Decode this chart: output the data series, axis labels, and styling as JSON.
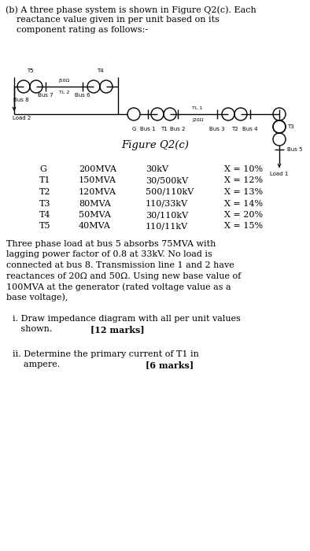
{
  "bg_color": "#ffffff",
  "text_color": "#000000",
  "title_line1": "(b) A three phase system is shown in Figure Q2(c). Each",
  "title_line2": "    reactance value given in per unit based on its",
  "title_line3": "    component rating as follows:-",
  "figure_caption": "Figure Q2(c)",
  "table_components": [
    "G",
    "T1",
    "T2",
    "T3",
    "T4",
    "T5"
  ],
  "table_mva": [
    "200MVA",
    "150MVA",
    "120MVA",
    "80MVA",
    "50MVA",
    "40MVA"
  ],
  "table_voltage": [
    "30kV",
    "30/500kV",
    "500/110kV",
    "110/33kV",
    "30/110kV",
    "110/11kV"
  ],
  "table_reactance": [
    "X = 10%",
    "X = 12%",
    "X = 13%",
    "X = 14%",
    "X = 20%",
    "X = 15%"
  ],
  "para_lines": [
    "Three phase load at bus 5 absorbs 75MVA with",
    "lagging power factor of 0.8 at 33kV. No load is",
    "connected at bus 8. Transmission line 1 and 2 have",
    "reactances of 20Ω and 50Ω. Using new base value of",
    "100MVA at the generator (rated voltage value as a",
    "base voltage),"
  ],
  "sub_i_line1": "i. Draw impedance diagram with all per unit values",
  "sub_i_line2": "   shown.",
  "sub_i_marks": "[12 marks]",
  "sub_ii_line1": "ii. Determine the primary current of T1 in",
  "sub_ii_line2": "    ampere.",
  "sub_ii_marks": "[6 marks]"
}
